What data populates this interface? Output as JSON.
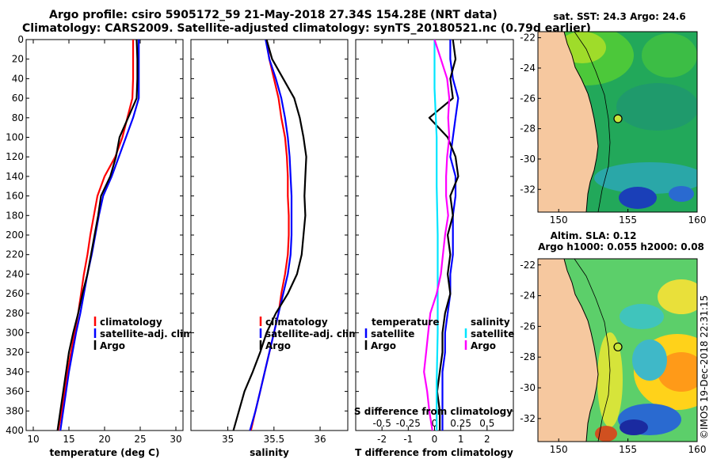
{
  "header": {
    "line1": "Argo profile: csiro 5905172_59 21-May-2018 27.34S 154.28E (NRT data)",
    "line2": "Climatology: CARS2009. Satellite-adjusted climatology: synTS_20180521.nc (0.79d earlier)"
  },
  "colors": {
    "climatology": "#ff0000",
    "satellite": "#0000ff",
    "argo": "#000000",
    "sat_salinity": "#00e5ff",
    "argo_salinity": "#ff00ff",
    "land": "#f6c89f"
  },
  "chart_data": [
    {
      "type": "line",
      "id": "temperature",
      "xlabel": "temperature (deg C)",
      "ylabel": "",
      "xlim": [
        9,
        31
      ],
      "ylim": [
        400,
        0
      ],
      "xticks": [
        "10",
        "15",
        "20",
        "25",
        "30"
      ],
      "xtick_values": [
        10,
        15,
        20,
        25,
        30
      ],
      "yticks": [
        "0",
        "20",
        "40",
        "60",
        "80",
        "100",
        "120",
        "140",
        "160",
        "180",
        "200",
        "220",
        "240",
        "260",
        "280",
        "300",
        "320",
        "340",
        "360",
        "380",
        "400"
      ],
      "ytick_values": [
        0,
        20,
        40,
        60,
        80,
        100,
        120,
        140,
        160,
        180,
        200,
        220,
        240,
        260,
        280,
        300,
        320,
        340,
        360,
        380,
        400
      ],
      "legend": [
        "climatology",
        "satellite-adj. clim.",
        "Argo"
      ],
      "series": [
        {
          "name": "climatology",
          "color": "#ff0000",
          "points": [
            [
              24.0,
              0
            ],
            [
              24.0,
              20
            ],
            [
              24.0,
              40
            ],
            [
              23.9,
              60
            ],
            [
              23.2,
              80
            ],
            [
              22.5,
              100
            ],
            [
              21.5,
              120
            ],
            [
              20.0,
              140
            ],
            [
              19.0,
              160
            ],
            [
              18.5,
              180
            ],
            [
              18.0,
              200
            ],
            [
              17.6,
              220
            ],
            [
              17.1,
              240
            ],
            [
              16.7,
              260
            ],
            [
              16.3,
              280
            ],
            [
              15.8,
              300
            ],
            [
              15.3,
              320
            ],
            [
              14.8,
              340
            ],
            [
              14.4,
              360
            ],
            [
              14.0,
              380
            ],
            [
              13.5,
              400
            ]
          ]
        },
        {
          "name": "satellite-adj. clim.",
          "color": "#0000ff",
          "points": [
            [
              24.8,
              0
            ],
            [
              24.8,
              20
            ],
            [
              24.8,
              40
            ],
            [
              24.8,
              60
            ],
            [
              24.0,
              80
            ],
            [
              23.0,
              100
            ],
            [
              22.0,
              120
            ],
            [
              21.0,
              140
            ],
            [
              19.8,
              160
            ],
            [
              19.2,
              180
            ],
            [
              18.7,
              200
            ],
            [
              18.2,
              220
            ],
            [
              17.6,
              240
            ],
            [
              17.1,
              260
            ],
            [
              16.6,
              280
            ],
            [
              16.0,
              300
            ],
            [
              15.5,
              320
            ],
            [
              15.0,
              340
            ],
            [
              14.6,
              360
            ],
            [
              14.2,
              380
            ],
            [
              13.8,
              400
            ]
          ]
        },
        {
          "name": "Argo",
          "color": "#000000",
          "points": [
            [
              24.5,
              0
            ],
            [
              24.6,
              20
            ],
            [
              24.6,
              40
            ],
            [
              24.5,
              60
            ],
            [
              23.3,
              80
            ],
            [
              22.1,
              100
            ],
            [
              21.6,
              120
            ],
            [
              20.8,
              140
            ],
            [
              19.5,
              160
            ],
            [
              19.1,
              180
            ],
            [
              18.6,
              200
            ],
            [
              18.1,
              220
            ],
            [
              17.6,
              240
            ],
            [
              16.9,
              260
            ],
            [
              16.3,
              280
            ],
            [
              15.6,
              300
            ],
            [
              15.0,
              320
            ],
            [
              14.6,
              340
            ],
            [
              14.2,
              360
            ],
            [
              13.8,
              380
            ],
            [
              13.4,
              400
            ]
          ]
        }
      ]
    },
    {
      "type": "line",
      "id": "salinity",
      "xlabel": "salinity",
      "xlim": [
        34.6,
        36.3
      ],
      "ylim": [
        400,
        0
      ],
      "xticks": [
        "35",
        "35.5",
        "36"
      ],
      "xtick_values": [
        35,
        35.5,
        36
      ],
      "legend": [
        "climatology",
        "satellite-adj. clim.",
        "Argo"
      ],
      "series": [
        {
          "name": "climatology",
          "color": "#ff0000",
          "points": [
            [
              35.42,
              0
            ],
            [
              35.45,
              20
            ],
            [
              35.5,
              40
            ],
            [
              35.55,
              60
            ],
            [
              35.58,
              80
            ],
            [
              35.62,
              100
            ],
            [
              35.64,
              120
            ],
            [
              35.65,
              140
            ],
            [
              35.65,
              160
            ],
            [
              35.66,
              180
            ],
            [
              35.66,
              200
            ],
            [
              35.65,
              220
            ],
            [
              35.62,
              240
            ],
            [
              35.58,
              260
            ],
            [
              35.55,
              280
            ],
            [
              35.5,
              300
            ],
            [
              35.45,
              320
            ],
            [
              35.4,
              340
            ],
            [
              35.35,
              360
            ],
            [
              35.3,
              380
            ],
            [
              35.25,
              400
            ]
          ]
        },
        {
          "name": "satellite-adj. clim.",
          "color": "#0000ff",
          "points": [
            [
              35.41,
              0
            ],
            [
              35.45,
              20
            ],
            [
              35.52,
              40
            ],
            [
              35.58,
              60
            ],
            [
              35.62,
              80
            ],
            [
              35.65,
              100
            ],
            [
              35.67,
              120
            ],
            [
              35.68,
              140
            ],
            [
              35.69,
              160
            ],
            [
              35.69,
              180
            ],
            [
              35.69,
              200
            ],
            [
              35.68,
              220
            ],
            [
              35.65,
              240
            ],
            [
              35.6,
              260
            ],
            [
              35.55,
              280
            ],
            [
              35.5,
              300
            ],
            [
              35.45,
              320
            ],
            [
              35.4,
              340
            ],
            [
              35.35,
              360
            ],
            [
              35.3,
              380
            ],
            [
              35.24,
              400
            ]
          ]
        },
        {
          "name": "Argo",
          "color": "#000000",
          "points": [
            [
              35.42,
              0
            ],
            [
              35.48,
              20
            ],
            [
              35.6,
              40
            ],
            [
              35.72,
              60
            ],
            [
              35.78,
              80
            ],
            [
              35.82,
              100
            ],
            [
              35.85,
              120
            ],
            [
              35.84,
              140
            ],
            [
              35.83,
              160
            ],
            [
              35.84,
              180
            ],
            [
              35.82,
              200
            ],
            [
              35.8,
              220
            ],
            [
              35.75,
              240
            ],
            [
              35.65,
              260
            ],
            [
              35.52,
              280
            ],
            [
              35.42,
              300
            ],
            [
              35.35,
              320
            ],
            [
              35.27,
              340
            ],
            [
              35.18,
              360
            ],
            [
              35.12,
              380
            ],
            [
              35.06,
              400
            ]
          ]
        }
      ]
    },
    {
      "type": "line",
      "id": "difference",
      "xlabel": "T difference from climatology",
      "xlim": [
        -3,
        3
      ],
      "ylim": [
        400,
        0
      ],
      "xticks": [
        "-2",
        "-1",
        "0",
        "1",
        "2"
      ],
      "xtick_values": [
        -2,
        -1,
        0,
        1,
        2
      ],
      "sxlabel": "S difference from climatology",
      "sxticks": [
        "-0.5",
        "-0.25",
        "0",
        "0.25",
        "0.5"
      ],
      "sxtick_values": [
        -0.5,
        -0.25,
        0,
        0.25,
        0.5
      ],
      "legend_temperature": {
        "title": "temperature",
        "items": [
          "satellite",
          "Argo"
        ]
      },
      "legend_salinity": {
        "title": "salinity",
        "items": [
          "satellite",
          "Argo"
        ]
      },
      "series": [
        {
          "name": "temperature satellite",
          "color": "#0000ff",
          "points": [
            [
              0.6,
              0
            ],
            [
              0.6,
              20
            ],
            [
              0.7,
              40
            ],
            [
              0.9,
              60
            ],
            [
              0.8,
              80
            ],
            [
              0.7,
              100
            ],
            [
              0.6,
              120
            ],
            [
              0.8,
              140
            ],
            [
              0.8,
              160
            ],
            [
              0.7,
              180
            ],
            [
              0.7,
              200
            ],
            [
              0.7,
              220
            ],
            [
              0.6,
              240
            ],
            [
              0.6,
              260
            ],
            [
              0.5,
              280
            ],
            [
              0.4,
              300
            ],
            [
              0.4,
              320
            ],
            [
              0.3,
              340
            ],
            [
              0.3,
              360
            ],
            [
              0.3,
              380
            ],
            [
              0.3,
              400
            ]
          ]
        },
        {
          "name": "temperature Argo",
          "color": "#000000",
          "points": [
            [
              0.7,
              0
            ],
            [
              0.8,
              20
            ],
            [
              0.6,
              40
            ],
            [
              0.7,
              60
            ],
            [
              -0.2,
              80
            ],
            [
              0.5,
              100
            ],
            [
              0.8,
              120
            ],
            [
              0.9,
              140
            ],
            [
              0.6,
              160
            ],
            [
              0.7,
              180
            ],
            [
              0.5,
              200
            ],
            [
              0.6,
              220
            ],
            [
              0.5,
              240
            ],
            [
              0.6,
              260
            ],
            [
              0.4,
              280
            ],
            [
              0.3,
              300
            ],
            [
              0.3,
              320
            ],
            [
              0.2,
              340
            ],
            [
              0.1,
              360
            ],
            [
              0.2,
              380
            ],
            [
              0.2,
              400
            ]
          ]
        },
        {
          "name": "salinity satellite",
          "color": "#00e5ff",
          "points": [
            [
              0.0,
              0
            ],
            [
              0.0,
              50
            ],
            [
              0.02,
              100
            ],
            [
              0.02,
              150
            ],
            [
              0.03,
              200
            ],
            [
              0.03,
              250
            ],
            [
              0.03,
              300
            ],
            [
              0.02,
              350
            ],
            [
              0.02,
              400
            ]
          ]
        },
        {
          "name": "salinity Argo",
          "color": "#ff00ff",
          "points": [
            [
              0.0,
              0
            ],
            [
              0.06,
              20
            ],
            [
              0.12,
              40
            ],
            [
              0.14,
              60
            ],
            [
              0.13,
              80
            ],
            [
              0.14,
              100
            ],
            [
              0.12,
              120
            ],
            [
              0.11,
              140
            ],
            [
              0.11,
              160
            ],
            [
              0.13,
              180
            ],
            [
              0.1,
              200
            ],
            [
              0.08,
              220
            ],
            [
              0.06,
              240
            ],
            [
              0.02,
              260
            ],
            [
              -0.04,
              280
            ],
            [
              -0.06,
              300
            ],
            [
              -0.08,
              320
            ],
            [
              -0.1,
              340
            ],
            [
              -0.07,
              360
            ],
            [
              -0.05,
              380
            ],
            [
              -0.02,
              400
            ]
          ]
        }
      ]
    },
    {
      "type": "heatmap",
      "id": "sst_map",
      "title": "sat. SST: 24.3 Argo: 24.6",
      "xticks": [
        "150",
        "155",
        "160"
      ],
      "xtick_values": [
        150,
        155,
        160
      ],
      "yticks": [
        "-22",
        "-24",
        "-26",
        "-28",
        "-30",
        "-32"
      ],
      "ytick_values": [
        -22,
        -24,
        -26,
        -28,
        -30,
        -32
      ],
      "xlim": [
        148.5,
        160
      ],
      "ylim": [
        -21.6,
        -33.5
      ],
      "marker": [
        154.28,
        -27.34
      ]
    },
    {
      "type": "heatmap",
      "id": "sla_map",
      "title1": "Altim. SLA: 0.12",
      "title2": "Argo h1000: 0.055 h2000: 0.08",
      "xticks": [
        "150",
        "155",
        "160"
      ],
      "xtick_values": [
        150,
        155,
        160
      ],
      "yticks": [
        "-22",
        "-24",
        "-26",
        "-28",
        "-30",
        "-32"
      ],
      "ytick_values": [
        -22,
        -24,
        -26,
        -28,
        -30,
        -32
      ],
      "xlim": [
        148.5,
        160
      ],
      "ylim": [
        -21.6,
        -33.5
      ],
      "marker": [
        154.28,
        -27.34
      ]
    }
  ],
  "footer": {
    "stamp": "©IMOS 19-Dec-2018 22:31:15"
  }
}
